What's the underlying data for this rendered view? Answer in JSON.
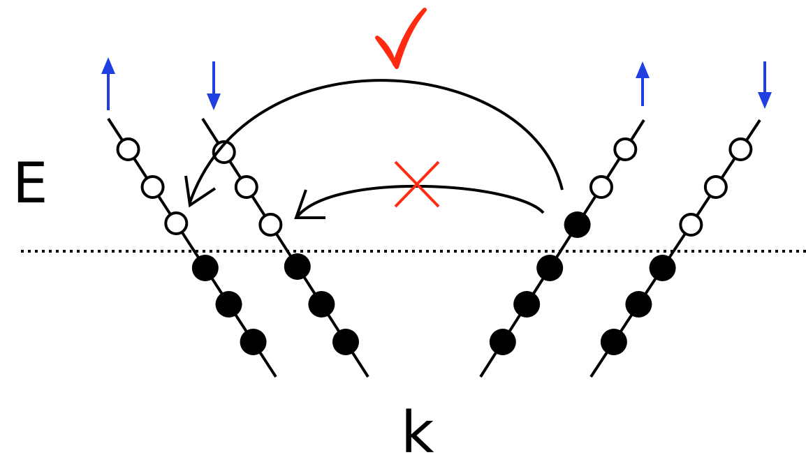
{
  "labels": {
    "energy_axis": "E",
    "momentum_axis": "k"
  },
  "spin_arrows": [
    {
      "direction": "up",
      "color": "#1f3fe0"
    },
    {
      "direction": "down",
      "color": "#1f3fe0"
    },
    {
      "direction": "up",
      "color": "#1f3fe0"
    },
    {
      "direction": "down",
      "color": "#1f3fe0"
    }
  ],
  "marks": {
    "allowed": {
      "glyph": "✓",
      "color": "#ff2a10"
    },
    "forbidden": {
      "glyph": "×",
      "color": "#ff2a10"
    }
  },
  "colors": {
    "line": "#000000",
    "fermi_level": "#000000",
    "occupied_state": "#000000",
    "empty_state": "#ffffff"
  }
}
